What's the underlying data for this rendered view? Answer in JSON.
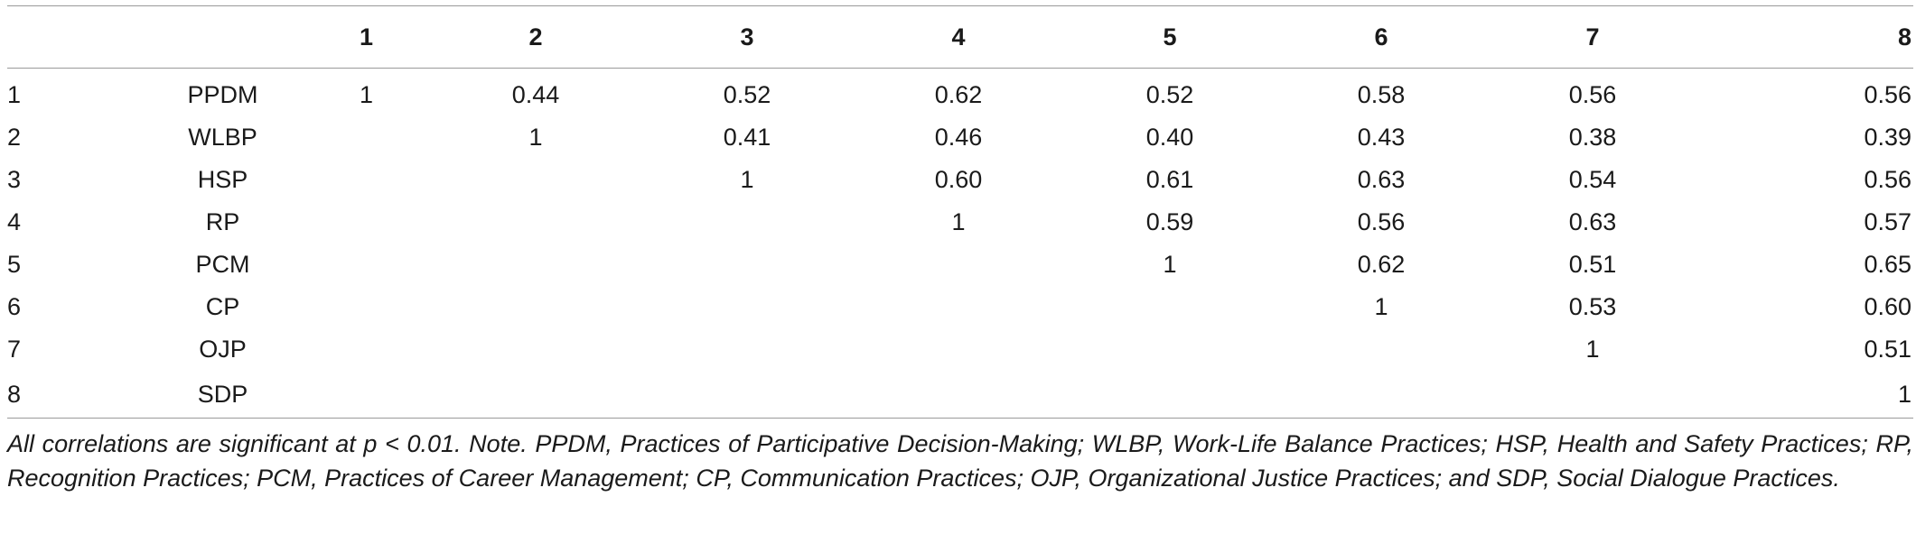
{
  "table": {
    "columns": [
      "",
      "",
      "1",
      "2",
      "3",
      "4",
      "5",
      "6",
      "7",
      "8"
    ],
    "rows": [
      [
        "1",
        "PPDM",
        "1",
        "0.44",
        "0.52",
        "0.62",
        "0.52",
        "0.58",
        "0.56",
        "0.56"
      ],
      [
        "2",
        "WLBP",
        "",
        "1",
        "0.41",
        "0.46",
        "0.40",
        "0.43",
        "0.38",
        "0.39"
      ],
      [
        "3",
        "HSP",
        "",
        "",
        "1",
        "0.60",
        "0.61",
        "0.63",
        "0.54",
        "0.56"
      ],
      [
        "4",
        "RP",
        "",
        "",
        "",
        "1",
        "0.59",
        "0.56",
        "0.63",
        "0.57"
      ],
      [
        "5",
        "PCM",
        "",
        "",
        "",
        "",
        "1",
        "0.62",
        "0.51",
        "0.65"
      ],
      [
        "6",
        "CP",
        "",
        "",
        "",
        "",
        "",
        "1",
        "0.53",
        "0.60"
      ],
      [
        "7",
        "OJP",
        "",
        "",
        "",
        "",
        "",
        "",
        "1",
        "0.51"
      ],
      [
        "8",
        "SDP",
        "",
        "",
        "",
        "",
        "",
        "",
        "",
        "1"
      ]
    ]
  },
  "note": "All correlations are significant at p < 0.01. Note. PPDM, Practices of Participative Decision-Making; WLBP, Work-Life Balance Practices; HSP, Health and Safety Practices; RP, Recognition Practices; PCM, Practices of Career Management; CP, Communication Practices; OJP, Organizational Justice Practices; and SDP, Social Dialogue Practices."
}
